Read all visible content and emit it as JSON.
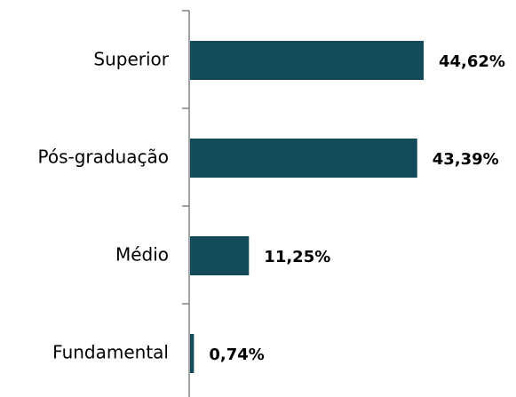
{
  "chart_data": {
    "type": "hbar",
    "categories": [
      "Superior",
      "Pós-graduação",
      "Médio",
      "Fundamental"
    ],
    "values": [
      44.62,
      43.39,
      11.25,
      0.74
    ],
    "value_labels": [
      "44,62%",
      "43,39%",
      "11,25%",
      "0,74%"
    ],
    "color": "#134b5a"
  }
}
